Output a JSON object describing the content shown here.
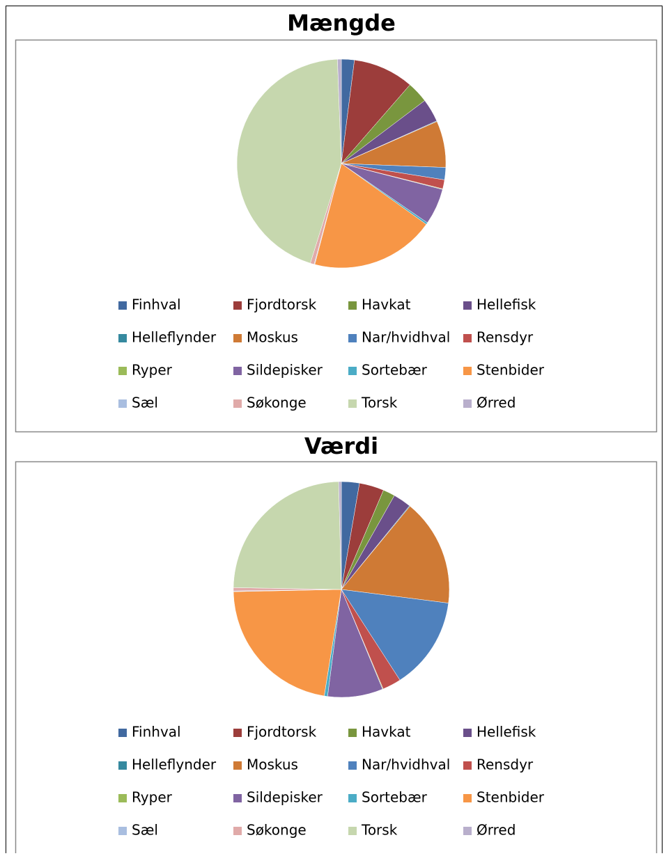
{
  "chart_data": [
    {
      "type": "pie",
      "title": "Mængde",
      "categories": [
        "Finhval",
        "Fjordtorsk",
        "Havkat",
        "Hellefisk",
        "Helleflynder",
        "Moskus",
        "Nar/hvidhval",
        "Rensdyr",
        "Ryper",
        "Sildepisker",
        "Sortebær",
        "Stenbider",
        "Sæl",
        "Søkonge",
        "Torsk",
        "Ørred"
      ],
      "values": [
        2,
        9.4,
        3.3,
        3.6,
        0.1,
        7.2,
        1.9,
        1.4,
        0.1,
        5.6,
        0.3,
        19.2,
        0.1,
        0.6,
        44.6,
        0.6
      ],
      "colors": [
        "#4169a0",
        "#9c3d3b",
        "#79963e",
        "#6a4f8a",
        "#35899f",
        "#cf7a35",
        "#4f81bd",
        "#c0504d",
        "#9bbb59",
        "#8064a2",
        "#4bacc6",
        "#f79646",
        "#a9bee0",
        "#e0aaa9",
        "#c6d7ae",
        "#b9afcc"
      ]
    },
    {
      "type": "pie",
      "title": "Værdi",
      "categories": [
        "Finhval",
        "Fjordtorsk",
        "Havkat",
        "Hellefisk",
        "Helleflynder",
        "Moskus",
        "Nar/hvidhval",
        "Rensdyr",
        "Ryper",
        "Sildepisker",
        "Sortebær",
        "Stenbider",
        "Sæl",
        "Søkonge",
        "Torsk",
        "Ørred"
      ],
      "values": [
        2.7,
        3.7,
        1.8,
        2.7,
        0.1,
        16.1,
        13.9,
        2.8,
        0.1,
        8.3,
        0.5,
        22.2,
        0.1,
        0.5,
        24.4,
        0.4
      ],
      "colors": [
        "#4169a0",
        "#9c3d3b",
        "#79963e",
        "#6a4f8a",
        "#35899f",
        "#cf7a35",
        "#4f81bd",
        "#c0504d",
        "#9bbb59",
        "#8064a2",
        "#4bacc6",
        "#f79646",
        "#a9bee0",
        "#e0aaa9",
        "#c6d7ae",
        "#b9afcc"
      ]
    }
  ]
}
